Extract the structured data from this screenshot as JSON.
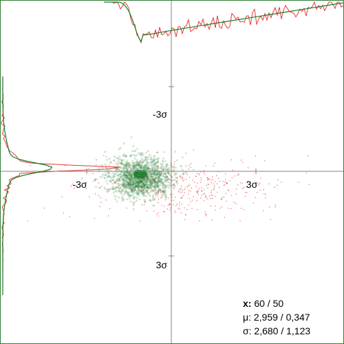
{
  "chart_data": {
    "type": "scatter",
    "title": "",
    "xlabel": "",
    "ylabel": "",
    "x_ticks": [
      "-3σ",
      "3σ"
    ],
    "y_ticks": [
      "-3σ",
      "3σ"
    ],
    "axis_range_sigma": [
      -6,
      6
    ],
    "grid": false,
    "series": [
      {
        "color": "#1b7a2c",
        "kind": "density-cloud",
        "center": [
          -1.1,
          0.2
        ],
        "spread": [
          0.55,
          0.35
        ]
      },
      {
        "color": "#e53935",
        "kind": "sample-points",
        "center": [
          0.3,
          0.6
        ],
        "spread": [
          1.6,
          0.9
        ]
      }
    ],
    "marginals": {
      "x_profile": {
        "position": "top",
        "colors": [
          "#1b7a2c",
          "#e53935"
        ]
      },
      "y_profile": {
        "position": "left",
        "colors": [
          "#1b7a2c",
          "#e53935"
        ]
      }
    }
  },
  "stats": {
    "x_label": "x:",
    "x_value": "60 / 50",
    "mu_label": "μ:",
    "mu_value": "2,959 / 0,347",
    "sigma_label": "σ:",
    "sigma_value": "2,680 / 1,123"
  },
  "colors": {
    "axis": "#808080",
    "frame": "#2e7d32",
    "green": "#1b7a2c",
    "red": "#e53935"
  }
}
